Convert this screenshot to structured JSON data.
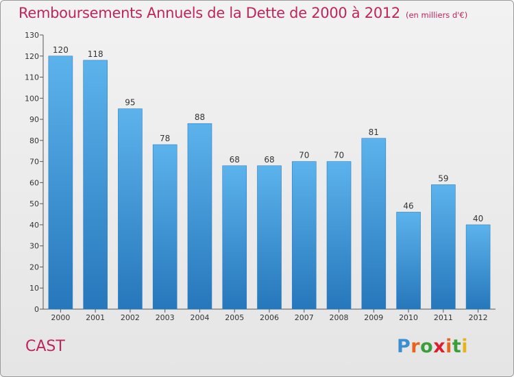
{
  "title": "Remboursements Annuels de la Dette de 2000 à 2012",
  "subtitle": "(en milliers d'€)",
  "commune": "CAST",
  "logo": {
    "letters": [
      "P",
      "r",
      "o",
      "x",
      "i",
      "t",
      "i"
    ],
    "colors": [
      "#3a8fd0",
      "#e8631d",
      "#3a9e3a",
      "#d9202e",
      "#e8631d",
      "#3a9e3a",
      "#e8b21d"
    ]
  },
  "colors": {
    "bar": "#4aa3e4",
    "bar_dark": "#2a7fc2",
    "title": "#c0245c"
  },
  "chart_data": {
    "type": "bar",
    "title": "Remboursements Annuels de la Dette de 2000 à 2012",
    "subtitle": "(en milliers d'€)",
    "categories": [
      "2000",
      "2001",
      "2002",
      "2003",
      "2004",
      "2005",
      "2006",
      "2007",
      "2008",
      "2009",
      "2010",
      "2011",
      "2012"
    ],
    "values": [
      120,
      118,
      95,
      78,
      88,
      68,
      68,
      70,
      70,
      81,
      46,
      59,
      40
    ],
    "ylim": [
      0,
      130
    ],
    "yticks": [
      0,
      10,
      20,
      30,
      40,
      50,
      60,
      70,
      80,
      90,
      100,
      110,
      120,
      130
    ],
    "grid": false
  }
}
